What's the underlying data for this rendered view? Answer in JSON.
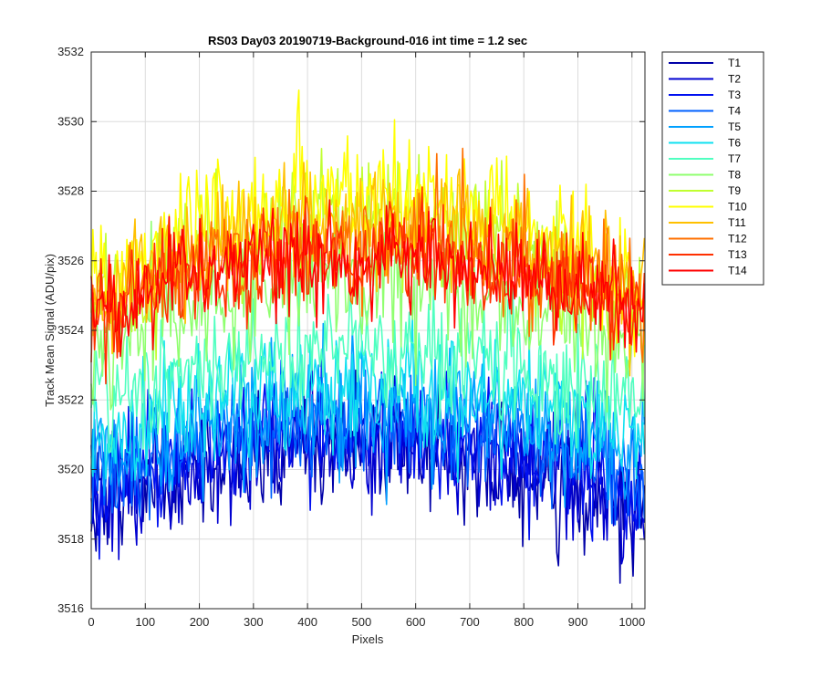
{
  "chart_data": {
    "type": "line",
    "title": "RS03 Day03 20190719-Background-016 int time = 1.2 sec",
    "xlabel": "Pixels",
    "ylabel": "Track Mean Signal (ADU/pix)",
    "xlim": [
      0,
      1024
    ],
    "ylim": [
      3516,
      3532
    ],
    "xticks": [
      0,
      100,
      200,
      300,
      400,
      500,
      600,
      700,
      800,
      900,
      1000
    ],
    "yticks": [
      3516,
      3518,
      3520,
      3522,
      3524,
      3526,
      3528,
      3530,
      3532
    ],
    "grid": true,
    "legend_position": "outside-right-top",
    "series": [
      {
        "name": "T1",
        "color": "#0000A8",
        "center": 3520.6,
        "edge": 3518.8,
        "spread": 1.6
      },
      {
        "name": "T2",
        "color": "#0000D0",
        "center": 3520.8,
        "edge": 3519.0,
        "spread": 1.6
      },
      {
        "name": "T3",
        "color": "#0010F0",
        "center": 3521.0,
        "edge": 3519.3,
        "spread": 1.6
      },
      {
        "name": "T4",
        "color": "#0060FF",
        "center": 3521.4,
        "edge": 3519.7,
        "spread": 1.6
      },
      {
        "name": "T5",
        "color": "#00A0FF",
        "center": 3521.9,
        "edge": 3520.2,
        "spread": 1.6
      },
      {
        "name": "T6",
        "color": "#10E0F0",
        "center": 3522.5,
        "edge": 3520.9,
        "spread": 1.6
      },
      {
        "name": "T7",
        "color": "#50FFC0",
        "center": 3523.4,
        "edge": 3521.8,
        "spread": 1.6
      },
      {
        "name": "T8",
        "color": "#90FF70",
        "center": 3525.5,
        "edge": 3523.3,
        "spread": 1.6
      },
      {
        "name": "T9",
        "color": "#C0FF30",
        "center": 3527.3,
        "edge": 3524.6,
        "spread": 1.6
      },
      {
        "name": "T10",
        "color": "#FFFF00",
        "center": 3528.0,
        "edge": 3525.0,
        "spread": 1.6
      },
      {
        "name": "T11",
        "color": "#FFC000",
        "center": 3527.2,
        "edge": 3524.8,
        "spread": 1.5
      },
      {
        "name": "T12",
        "color": "#FF7000",
        "center": 3526.6,
        "edge": 3524.6,
        "spread": 1.5
      },
      {
        "name": "T13",
        "color": "#FF3000",
        "center": 3526.2,
        "edge": 3524.6,
        "spread": 1.4
      },
      {
        "name": "T14",
        "color": "#FF0000",
        "center": 3526.0,
        "edge": 3524.6,
        "spread": 1.3
      }
    ]
  }
}
